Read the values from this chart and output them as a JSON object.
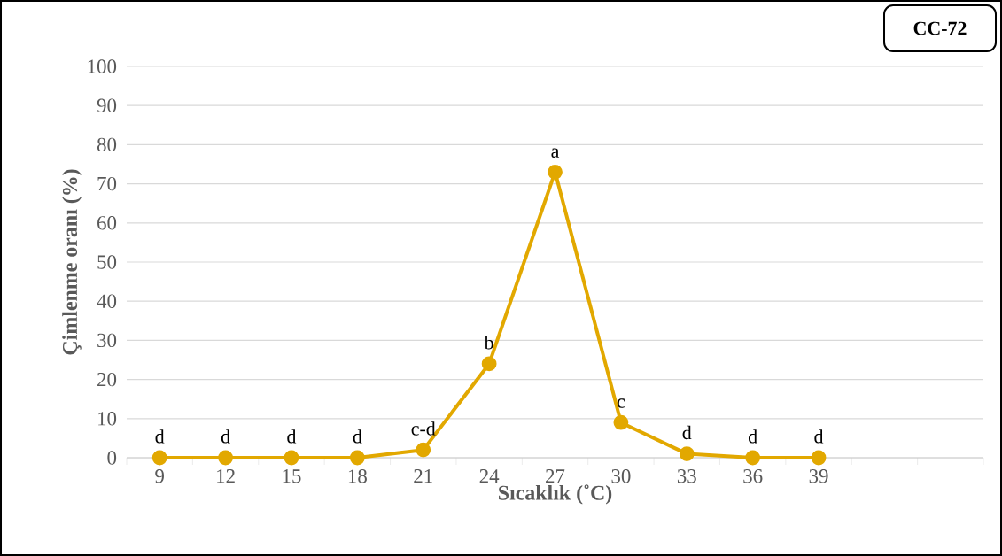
{
  "chart_data": {
    "type": "line",
    "title": "CC-72",
    "xlabel": "Sıcaklık (˚C)",
    "ylabel": "Çimlenme oranı (%)",
    "categories": [
      "9",
      "12",
      "15",
      "18",
      "21",
      "24",
      "27",
      "30",
      "33",
      "36",
      "39",
      null,
      null
    ],
    "series": [
      {
        "color": "#e2a800",
        "values": [
          0,
          0,
          0,
          0,
          2,
          24,
          73,
          9,
          1,
          0,
          0,
          null,
          null
        ]
      }
    ],
    "ylim": [
      0,
      100
    ],
    "yticks": [
      0,
      10,
      20,
      30,
      40,
      50,
      60,
      70,
      80,
      90,
      100
    ],
    "grid": "y",
    "marker": "circle",
    "line_style": "solid",
    "annotations": [
      {
        "text": "d",
        "x": "9",
        "y": 0
      },
      {
        "text": "d",
        "x": "12",
        "y": 0
      },
      {
        "text": "d",
        "x": "15",
        "y": 0
      },
      {
        "text": "d",
        "x": "18",
        "y": 0
      },
      {
        "text": "c-d",
        "x": "21",
        "y": 2
      },
      {
        "text": "b",
        "x": "24",
        "y": 24
      },
      {
        "text": "a",
        "x": "27",
        "y": 73
      },
      {
        "text": "c",
        "x": "30",
        "y": 9
      },
      {
        "text": "d",
        "x": "33",
        "y": 1
      },
      {
        "text": "d",
        "x": "36",
        "y": 0
      },
      {
        "text": "d",
        "x": "39",
        "y": 0
      }
    ]
  }
}
